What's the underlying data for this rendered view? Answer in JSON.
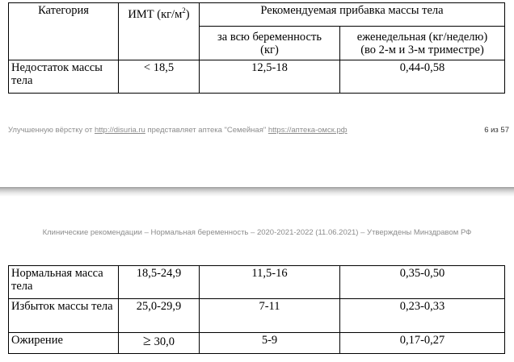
{
  "table_top": {
    "header": {
      "category": "Категория",
      "bmi_prefix": "ИМТ (кг/м",
      "bmi_sup": "2",
      "bmi_suffix": ")",
      "recommended": "Рекомендуемая прибавка массы тела",
      "whole_line1": "за всю беременность",
      "whole_line2": "(кг)",
      "weekly_line1": "еженедельная (кг/неделю)",
      "weekly_line2": "(во 2-м и 3-м триместре)"
    },
    "rows": [
      {
        "category": "Недостаток массы тела",
        "bmi": "< 18,5",
        "total": "12,5-18",
        "weekly": "0,44-0,58"
      }
    ]
  },
  "footer": {
    "prefix": "Улучшенную вёрстку от ",
    "link1": "http://disuria.ru",
    "middle": " представляет аптека \"Семейная\" ",
    "link2": "https://аптека-омск.рф",
    "page": "6 из 57"
  },
  "page_header": "Клинические рекомендации – Нормальная беременность – 2020-2021-2022 (11.06.2021) – Утверждены Минздравом РФ",
  "table_bottom": {
    "rows": [
      {
        "category": "Нормальная масса тела",
        "bmi": "18,5-24,9",
        "total": "11,5-16",
        "weekly": "0,35-0,50"
      },
      {
        "category": "Избыток массы тела",
        "bmi": "25,0-29,9",
        "total": "7-11",
        "weekly": "0,23-0,33"
      },
      {
        "category": "Ожирение",
        "bmi_symbol": "≥",
        "bmi": "30,0",
        "total": "5-9",
        "weekly": "0,17-0,27"
      }
    ]
  }
}
